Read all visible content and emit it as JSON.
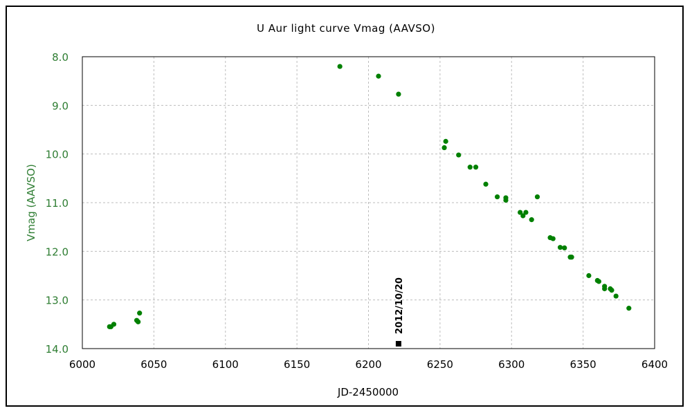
{
  "chart_data": {
    "type": "scatter",
    "title": "U Aur   light curve  Vmag (AAVSO)",
    "xlabel": "JD-2450000",
    "ylabel": "Vmag (AAVSO)",
    "xlim": [
      6000,
      6400
    ],
    "ylim": [
      14.0,
      8.0
    ],
    "y_inverted": true,
    "grid": true,
    "x_ticks": [
      "6000",
      "6050",
      "6100",
      "6150",
      "6200",
      "6250",
      "6300",
      "6350",
      "6400"
    ],
    "y_ticks": [
      "8.0",
      "9.0",
      "10.0",
      "11.0",
      "12.0",
      "13.0",
      "14.0"
    ],
    "series": [
      {
        "color": "#008000",
        "points": [
          {
            "x": 6019,
            "y": 13.55
          },
          {
            "x": 6020,
            "y": 13.55
          },
          {
            "x": 6022,
            "y": 13.5
          },
          {
            "x": 6038,
            "y": 13.42
          },
          {
            "x": 6039,
            "y": 13.45
          },
          {
            "x": 6040,
            "y": 13.27
          },
          {
            "x": 6180,
            "y": 8.2
          },
          {
            "x": 6207,
            "y": 8.4
          },
          {
            "x": 6221,
            "y": 8.77
          },
          {
            "x": 6253,
            "y": 9.87
          },
          {
            "x": 6254,
            "y": 9.74
          },
          {
            "x": 6263,
            "y": 10.02
          },
          {
            "x": 6271,
            "y": 10.27
          },
          {
            "x": 6275,
            "y": 10.27
          },
          {
            "x": 6282,
            "y": 10.62
          },
          {
            "x": 6290,
            "y": 10.88
          },
          {
            "x": 6296,
            "y": 10.9
          },
          {
            "x": 6296,
            "y": 10.95
          },
          {
            "x": 6306,
            "y": 11.2
          },
          {
            "x": 6308,
            "y": 11.27
          },
          {
            "x": 6310,
            "y": 11.2
          },
          {
            "x": 6314,
            "y": 11.35
          },
          {
            "x": 6318,
            "y": 10.88
          },
          {
            "x": 6327,
            "y": 11.72
          },
          {
            "x": 6329,
            "y": 11.74
          },
          {
            "x": 6334,
            "y": 11.92
          },
          {
            "x": 6337,
            "y": 11.93
          },
          {
            "x": 6341,
            "y": 12.12
          },
          {
            "x": 6342,
            "y": 12.12
          },
          {
            "x": 6354,
            "y": 12.5
          },
          {
            "x": 6360,
            "y": 12.6
          },
          {
            "x": 6361,
            "y": 12.62
          },
          {
            "x": 6365,
            "y": 12.72
          },
          {
            "x": 6365,
            "y": 12.77
          },
          {
            "x": 6369,
            "y": 12.77
          },
          {
            "x": 6370,
            "y": 12.8
          },
          {
            "x": 6373,
            "y": 12.92
          },
          {
            "x": 6382,
            "y": 13.17
          }
        ]
      }
    ],
    "annotations": [
      {
        "text": "2012/10/20",
        "x": 6221,
        "y": 13.9,
        "marker": "square",
        "color": "#000000"
      }
    ]
  }
}
